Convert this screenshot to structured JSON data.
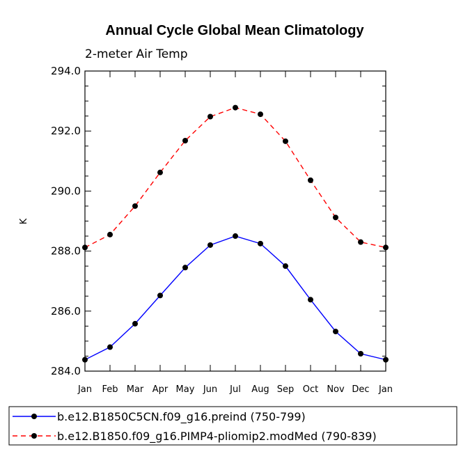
{
  "chart_data": {
    "type": "line",
    "title": "Annual Cycle Global Mean Climatology",
    "subtitle": "2-meter Air Temp",
    "xlabel": "",
    "ylabel": "K",
    "ylim": [
      284.0,
      294.0
    ],
    "yticks": [
      284.0,
      286.0,
      288.0,
      290.0,
      292.0,
      294.0
    ],
    "ytick_labels": [
      "284.0",
      "286.0",
      "288.0",
      "290.0",
      "292.0",
      "294.0"
    ],
    "categories": [
      "Jan",
      "Feb",
      "Mar",
      "Apr",
      "May",
      "Jun",
      "Jul",
      "Aug",
      "Sep",
      "Oct",
      "Nov",
      "Dec",
      "Jan"
    ],
    "grid": false,
    "legend_position": "bottom",
    "series": [
      {
        "name": "b.e12.B1850C5CN.f09_g16.preind (750-799)",
        "color": "#0000ff",
        "dash": "solid",
        "values": [
          284.38,
          284.8,
          285.58,
          286.52,
          287.45,
          288.2,
          288.5,
          288.25,
          287.5,
          286.38,
          285.32,
          284.58,
          284.38
        ]
      },
      {
        "name": "b.e12.B1850.f09_g16.PIMP4-pliomip2.modMed (790-839)",
        "color": "#ff0000",
        "dash": "dashed",
        "values": [
          288.12,
          288.55,
          289.5,
          290.62,
          291.68,
          292.48,
          292.78,
          292.56,
          291.66,
          290.36,
          289.12,
          288.3,
          288.12
        ]
      }
    ]
  }
}
